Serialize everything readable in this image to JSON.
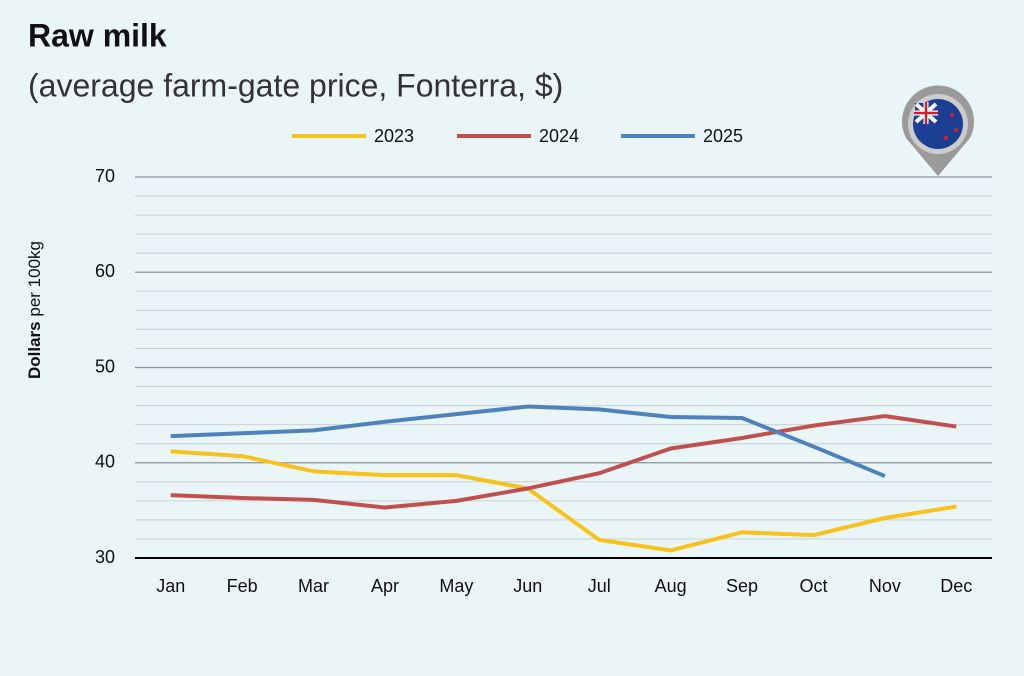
{
  "chart_data": {
    "type": "line",
    "title": "Raw milk",
    "subtitle": "(average farm-gate price, Fonterra, $)",
    "y_label_bold": "Dollars",
    "y_label_rest": "per 100kg",
    "categories": [
      "Jan",
      "Feb",
      "Mar",
      "Apr",
      "May",
      "Jun",
      "Jul",
      "Aug",
      "Sep",
      "Oct",
      "Nov",
      "Dec"
    ],
    "series": [
      {
        "name": "2023",
        "color": "#f9c21a",
        "values": [
          41.2,
          40.7,
          39.1,
          38.7,
          38.7,
          37.3,
          31.9,
          30.8,
          32.7,
          32.4,
          34.2,
          35.4
        ]
      },
      {
        "name": "2024",
        "color": "#c0504d",
        "values": [
          36.6,
          36.3,
          36.1,
          35.3,
          36.0,
          37.3,
          38.9,
          41.5,
          42.6,
          43.9,
          44.9,
          43.8
        ]
      },
      {
        "name": "2025",
        "color": "#4f81bd",
        "values": [
          42.8,
          43.1,
          43.4,
          44.3,
          45.1,
          45.9,
          45.6,
          44.8,
          44.7,
          41.7,
          38.6,
          null
        ]
      }
    ],
    "ylim": [
      30,
      70
    ],
    "yticks": [
      30,
      40,
      50,
      60,
      70
    ],
    "minor_yticks": [
      32,
      34,
      36,
      38,
      42,
      44,
      46,
      48,
      52,
      54,
      56,
      58,
      62,
      64,
      66,
      68
    ],
    "grid": true
  }
}
